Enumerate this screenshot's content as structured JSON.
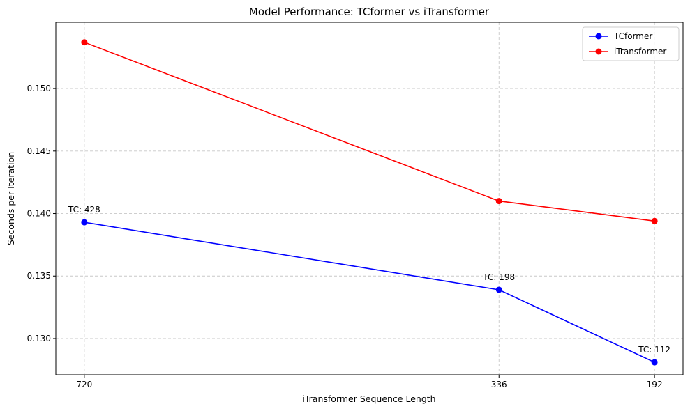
{
  "chart_data": {
    "type": "line",
    "title": "Model Performance: TCformer vs iTransformer",
    "xlabel": "iTransformer Sequence Length",
    "ylabel": "Seconds per Iteration",
    "x_categories": [
      "720",
      "336",
      "192"
    ],
    "x_positions": [
      720,
      336,
      192
    ],
    "x_reversed": true,
    "ylim": [
      0.1271,
      0.1553
    ],
    "yticks": [
      0.13,
      0.135,
      0.14,
      0.145,
      0.15
    ],
    "ytick_labels": [
      "0.130",
      "0.135",
      "0.140",
      "0.145",
      "0.150"
    ],
    "grid": true,
    "legend_position": "top-right",
    "series": [
      {
        "name": "TCformer",
        "color": "#0000ff",
        "y": [
          0.1393,
          0.1339,
          0.1281
        ]
      },
      {
        "name": "iTransformer",
        "color": "#ff0000",
        "y": [
          0.1537,
          0.141,
          0.1394
        ]
      }
    ],
    "annotations": [
      {
        "text": "TC: 428",
        "x": 720,
        "y": 0.1393
      },
      {
        "text": "TC: 198",
        "x": 336,
        "y": 0.1339
      },
      {
        "text": "TC: 112",
        "x": 192,
        "y": 0.1281
      }
    ]
  }
}
